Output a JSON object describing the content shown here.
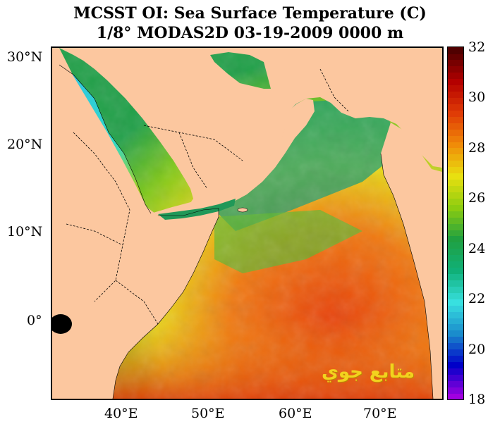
{
  "title": {
    "line1": "MCSST OI:  Sea Surface Temperature (C)",
    "line2": "1/8° MODAS2D 03-19-2009 0000 m"
  },
  "map": {
    "lon_range": [
      32,
      77
    ],
    "lat_range": [
      -9,
      31
    ],
    "lat_ticks": [
      {
        "value": 30,
        "label": "30°N"
      },
      {
        "value": 20,
        "label": "20°N"
      },
      {
        "value": 10,
        "label": "10°N"
      },
      {
        "value": 0,
        "label": "0°"
      }
    ],
    "lon_ticks": [
      {
        "value": 40,
        "label": "40°E"
      },
      {
        "value": 50,
        "label": "50°E"
      },
      {
        "value": 60,
        "label": "60°E"
      },
      {
        "value": 70,
        "label": "70°E"
      }
    ],
    "land_color": "#fcc79f",
    "watermark": "متابع جوي"
  },
  "colorbar": {
    "min": 18,
    "max": 32,
    "labels": [
      "32",
      "30",
      "28",
      "26",
      "24",
      "22",
      "20",
      "18"
    ],
    "stops": [
      "#a000e0",
      "#0000c8",
      "#1a8ccc",
      "#38e0e0",
      "#10b078",
      "#20a040",
      "#8ccc10",
      "#e8e010",
      "#f08c08",
      "#e03c06",
      "#b40000",
      "#500000"
    ]
  }
}
